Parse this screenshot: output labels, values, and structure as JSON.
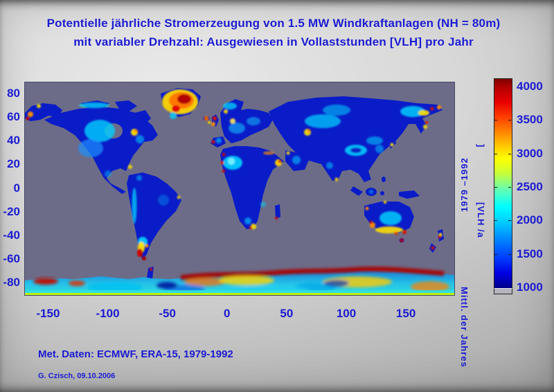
{
  "title": {
    "line1": "Potentielle jährliche Stromerzeugung von 1.5 MW Windkraftanlagen (NH = 80m)",
    "line2": "mit variabler Drehzahl: Ausgewiesen in Vollaststunden [VLH] pro Jahr"
  },
  "chart_data": {
    "type": "heatmap",
    "title": "Potentielle jährliche Stromerzeugung von 1.5 MW Windkraftanlagen (NH = 80m) mit variabler Drehzahl: Ausgewiesen in Vollaststunden [VLH] pro Jahr",
    "map_kind": "world map, equirectangular grid of full-load-hours values over land; ocean shown as grey no-data",
    "x_axis": {
      "ticks": [
        -150,
        -100,
        -50,
        0,
        50,
        100,
        150
      ],
      "range": [
        -170,
        190
      ],
      "unit": "degrees longitude"
    },
    "y_axis": {
      "ticks": [
        80,
        60,
        40,
        20,
        0,
        -20,
        -40,
        -60,
        -80
      ],
      "range": [
        -90,
        90
      ],
      "unit": "degrees latitude"
    },
    "colorbar": {
      "ticks": [
        4000,
        3500,
        3000,
        2500,
        2000,
        1500,
        1000
      ],
      "value_range_shown": [
        1000,
        4000
      ],
      "colormap": "jet (dark blue = low VLH, dark red = high VLH)",
      "below_min_color": "#b4b4bd",
      "position": "right"
    },
    "unit": "VLH pro Jahr [VLH/a]",
    "qualitative_patterns": {
      "high_vlh_regions": [
        "Greenland interior (dark red/orange)",
        "Iceland",
        "British Isles coasts",
        "west Alaska coast",
        "Somali coast / Horn of Africa",
        "coastal Patagonia and Tierra del Fuego",
        "southern Australia rim and Tasmania",
        "New Zealand",
        "Antarctic coastal ridge (dark red band)",
        "northeast Siberian coast"
      ],
      "mid_vlh_regions": [
        "central North American plains (cyan)",
        "Western Sahara (cyan)",
        "Kazakh steppe (cyan)",
        "Tibetan plateau rim",
        "Denmark / northern Europe patches",
        "central Australia (cyan)"
      ],
      "low_vlh_regions": [
        "most tropical and continental interiors (dark blue)",
        "Amazon basin",
        "central Africa",
        "Siberian taiga",
        "southeast Asia"
      ]
    },
    "grid": false,
    "legend_position": "right colorbar"
  },
  "vertical_labels": {
    "years": "1979 –1992",
    "mean_caption": "Mittl. der Jahres",
    "unit_bracket": "]",
    "unit": "[VLH /a"
  },
  "notes": {
    "met_data": "Met. Daten: ECMWF, ERA-15, 1979-1992",
    "author_date": "G. Czisch, 09.10.2006"
  },
  "colors": {
    "label_blue": "#1b1bd1",
    "ocean_grey": "#6c6c88",
    "land_low_blue": "#0a1cc8"
  }
}
